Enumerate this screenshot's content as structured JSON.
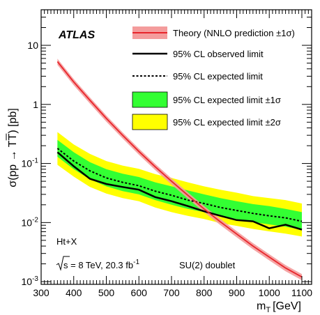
{
  "chart_data": {
    "type": "line",
    "experiment": "ATLAS",
    "xlabel": {
      "main": "m",
      "sub": "T",
      "unit": "[GeV]"
    },
    "ylabel": "σ(pp → TT) [pb]",
    "xlim": [
      300,
      1130
    ],
    "ylim": [
      0.0009,
      40
    ],
    "yscale": "log",
    "x_ticks": [
      300,
      400,
      500,
      600,
      700,
      800,
      900,
      1000,
      1100
    ],
    "y_ticks": [
      {
        "value": 0.001,
        "base": "10",
        "exp": "-3"
      },
      {
        "value": 0.01,
        "base": "10",
        "exp": "-2"
      },
      {
        "value": 0.1,
        "base": "10",
        "exp": "-1"
      },
      {
        "value": 1,
        "base": "1",
        "exp": ""
      },
      {
        "value": 10,
        "base": "10",
        "exp": ""
      }
    ],
    "mass_points": [
      350,
      400,
      450,
      500,
      550,
      600,
      650,
      700,
      750,
      800,
      850,
      900,
      950,
      1000,
      1050,
      1100
    ],
    "theory": {
      "name": "Theory (NNLO prediction ±1σ)",
      "x": [
        350,
        400,
        450,
        500,
        550,
        600,
        650,
        700,
        750,
        800,
        850,
        900,
        950,
        1000,
        1050,
        1100
      ],
      "values": [
        5.3,
        2.4,
        1.17,
        0.58,
        0.3,
        0.16,
        0.088,
        0.05,
        0.029,
        0.017,
        0.0103,
        0.0064,
        0.004,
        0.0026,
        0.0017,
        0.0012
      ],
      "rel_unc": 0.12,
      "color": "#e8252b",
      "band_color": "#f49c9c"
    },
    "observed": {
      "name": "95% CL observed limit",
      "values": [
        0.155,
        0.09,
        0.055,
        0.045,
        0.04,
        0.036,
        0.027,
        0.023,
        0.019,
        0.0155,
        0.013,
        0.011,
        0.0105,
        0.008,
        0.0092,
        0.0076
      ]
    },
    "expected": {
      "name": "95% CL expected limit",
      "values": [
        0.18,
        0.11,
        0.075,
        0.057,
        0.048,
        0.042,
        0.034,
        0.029,
        0.024,
        0.021,
        0.018,
        0.016,
        0.0143,
        0.013,
        0.012,
        0.0105
      ]
    },
    "band_1sigma": {
      "name": "95% CL expected limit ±1σ",
      "color": "#33ff33",
      "low": [
        0.13,
        0.08,
        0.054,
        0.041,
        0.034,
        0.03,
        0.024,
        0.02,
        0.017,
        0.015,
        0.0128,
        0.0115,
        0.0102,
        0.0093,
        0.0085,
        0.0075
      ],
      "high": [
        0.25,
        0.155,
        0.105,
        0.08,
        0.067,
        0.059,
        0.048,
        0.041,
        0.035,
        0.03,
        0.026,
        0.023,
        0.0205,
        0.019,
        0.017,
        0.015
      ]
    },
    "band_2sigma": {
      "name": "95% CL expected limit ±2σ",
      "color": "#ffff00",
      "low": [
        0.095,
        0.06,
        0.04,
        0.031,
        0.026,
        0.023,
        0.018,
        0.015,
        0.013,
        0.0115,
        0.0098,
        0.0088,
        0.0078,
        0.0071,
        0.0065,
        0.0058
      ],
      "high": [
        0.34,
        0.21,
        0.145,
        0.11,
        0.092,
        0.081,
        0.066,
        0.057,
        0.048,
        0.041,
        0.036,
        0.032,
        0.028,
        0.026,
        0.024,
        0.021
      ]
    },
    "annotations": {
      "process": "Ht+X",
      "sqrt_s": "s = 8 TeV, 20.3 fb",
      "lumi_exp": "-1",
      "model": "SU(2) doublet"
    }
  }
}
